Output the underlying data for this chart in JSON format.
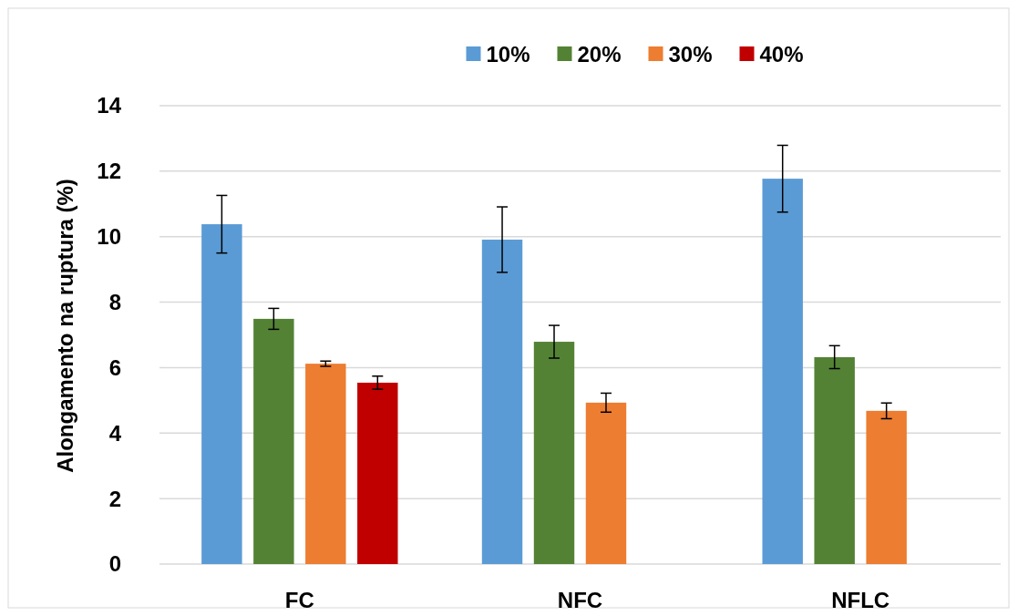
{
  "chart_data": {
    "type": "bar",
    "ylabel": "Alongamento na ruptura (%)",
    "categories": [
      "FC",
      "NFC",
      "NFLC"
    ],
    "series": [
      {
        "name": "10%",
        "color": "#5b9bd5",
        "values": [
          10.38,
          9.91,
          11.77
        ],
        "errors": [
          0.88,
          1.0,
          1.02
        ]
      },
      {
        "name": "20%",
        "color": "#548235",
        "values": [
          7.49,
          6.79,
          6.32
        ],
        "errors": [
          0.32,
          0.5,
          0.35
        ]
      },
      {
        "name": "30%",
        "color": "#ed7d31",
        "values": [
          6.12,
          4.93,
          4.68
        ],
        "errors": [
          0.08,
          0.29,
          0.24
        ]
      },
      {
        "name": "40%",
        "color": "#c00000",
        "values": [
          5.54,
          null,
          null
        ],
        "errors": [
          0.2,
          null,
          null
        ]
      }
    ],
    "ylim": [
      0,
      14
    ],
    "yticks": [
      0,
      2,
      4,
      6,
      8,
      10,
      12,
      14
    ],
    "grid": "y",
    "legend": "top"
  }
}
